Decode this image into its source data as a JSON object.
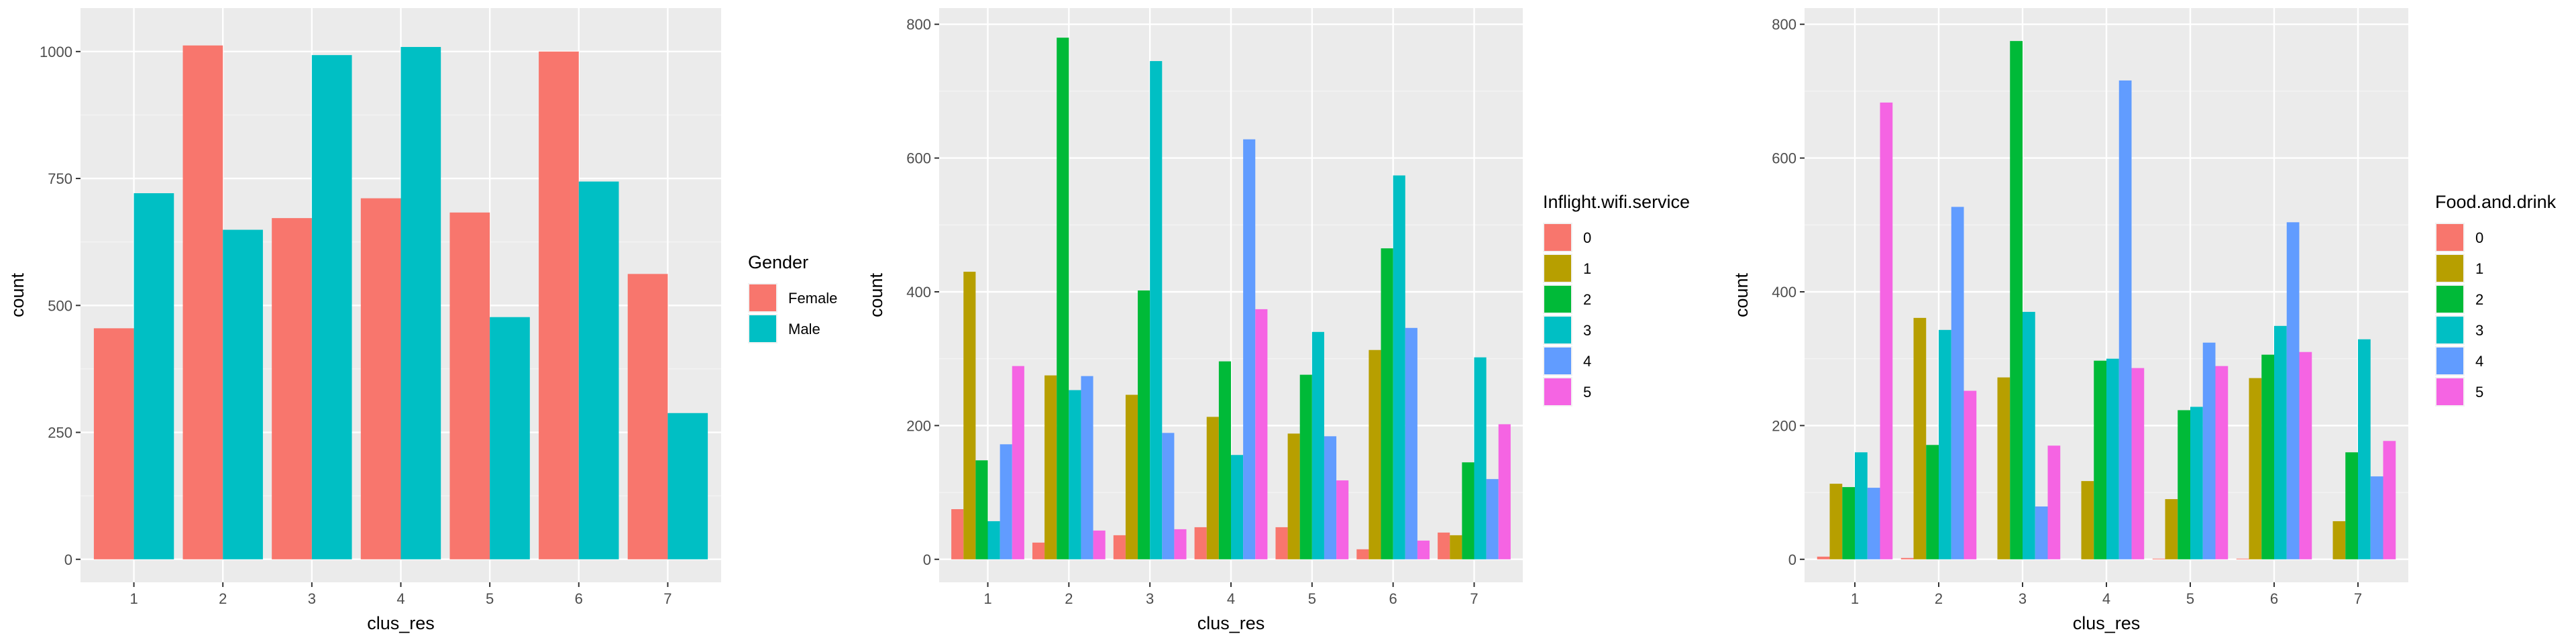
{
  "chart_data": [
    {
      "type": "bar",
      "xlabel": "clus_res",
      "ylabel": "count",
      "categories": [
        "1",
        "2",
        "3",
        "4",
        "5",
        "6",
        "7"
      ],
      "ylim": [
        0,
        1080
      ],
      "yticks": [
        0,
        250,
        500,
        750,
        1000
      ],
      "grid": true,
      "legend": {
        "title": "Gender",
        "placement": "right"
      },
      "series": [
        {
          "name": "Female",
          "color": "#F8766D",
          "values": [
            455,
            1012,
            672,
            711,
            683,
            1000,
            562
          ]
        },
        {
          "name": "Male",
          "color": "#00BFC4",
          "values": [
            721,
            649,
            993,
            1009,
            477,
            744,
            288
          ]
        }
      ]
    },
    {
      "type": "bar",
      "xlabel": "clus_res",
      "ylabel": "count",
      "categories": [
        "1",
        "2",
        "3",
        "4",
        "5",
        "6",
        "7"
      ],
      "ylim": [
        0,
        820
      ],
      "yticks": [
        0,
        200,
        400,
        600,
        800
      ],
      "grid": true,
      "legend": {
        "title": "Inflight.wifi.service",
        "placement": "right"
      },
      "series": [
        {
          "name": "0",
          "color": "#F8766D",
          "values": [
            75,
            25,
            36,
            48,
            48,
            15,
            40
          ]
        },
        {
          "name": "1",
          "color": "#B79F00",
          "values": [
            430,
            275,
            246,
            213,
            188,
            313,
            36
          ]
        },
        {
          "name": "2",
          "color": "#00BA38",
          "values": [
            148,
            780,
            402,
            296,
            276,
            465,
            145
          ]
        },
        {
          "name": "3",
          "color": "#00BFC4",
          "values": [
            57,
            253,
            745,
            156,
            340,
            574,
            302
          ]
        },
        {
          "name": "4",
          "color": "#619CFF",
          "values": [
            172,
            274,
            189,
            628,
            184,
            346,
            120
          ]
        },
        {
          "name": "5",
          "color": "#F564E3",
          "values": [
            289,
            43,
            45,
            374,
            118,
            28,
            202
          ]
        }
      ]
    },
    {
      "type": "bar",
      "xlabel": "clus_res",
      "ylabel": "count",
      "categories": [
        "1",
        "2",
        "3",
        "4",
        "5",
        "6",
        "7"
      ],
      "ylim": [
        0,
        820
      ],
      "yticks": [
        0,
        200,
        400,
        600,
        800
      ],
      "grid": true,
      "legend": {
        "title": "Food.and.drink",
        "placement": "right"
      },
      "series": [
        {
          "name": "0",
          "color": "#F8766D",
          "values": [
            4,
            2,
            0,
            0,
            1,
            1,
            0
          ]
        },
        {
          "name": "1",
          "color": "#B79F00",
          "values": [
            113,
            361,
            272,
            117,
            90,
            271,
            57
          ]
        },
        {
          "name": "2",
          "color": "#00BA38",
          "values": [
            108,
            171,
            775,
            297,
            223,
            306,
            160
          ]
        },
        {
          "name": "3",
          "color": "#00BFC4",
          "values": [
            160,
            343,
            370,
            300,
            228,
            349,
            329
          ]
        },
        {
          "name": "4",
          "color": "#619CFF",
          "values": [
            107,
            527,
            79,
            716,
            324,
            504,
            124
          ]
        },
        {
          "name": "5",
          "color": "#F564E3",
          "values": [
            683,
            252,
            170,
            286,
            289,
            310,
            177
          ]
        }
      ]
    }
  ]
}
